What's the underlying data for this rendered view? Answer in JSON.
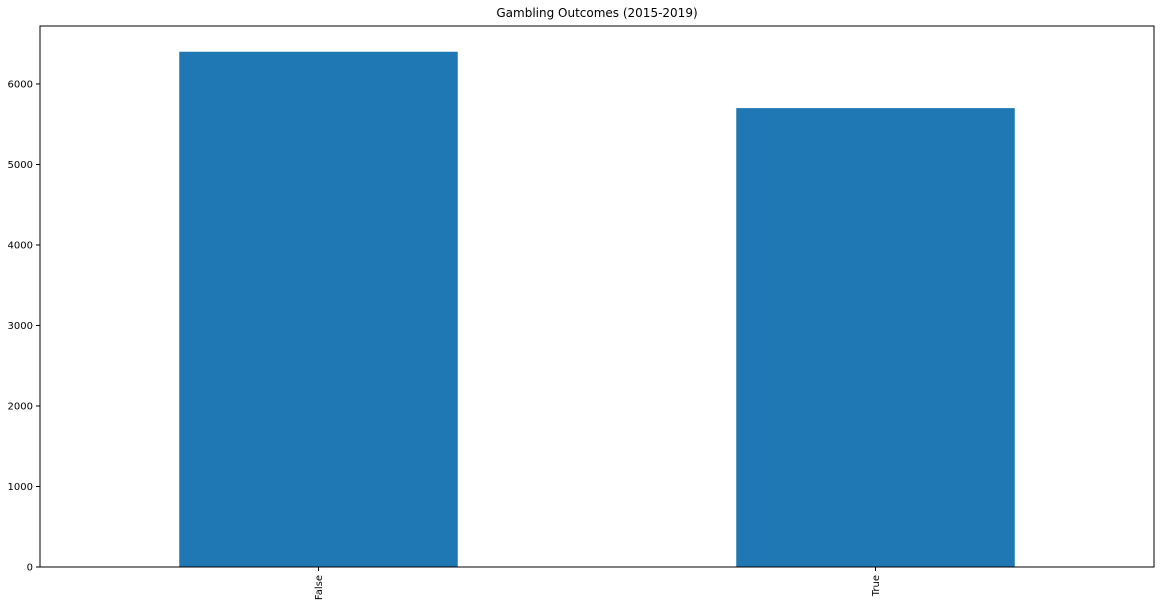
{
  "chart_data": {
    "type": "bar",
    "title": "Gambling Outcomes (2015-2019)",
    "xlabel": "",
    "ylabel": "",
    "categories": [
      "False",
      "True"
    ],
    "values": [
      6400,
      5700
    ],
    "ylim": [
      0,
      6720
    ],
    "yticks": [
      0,
      1000,
      2000,
      3000,
      4000,
      5000,
      6000
    ],
    "grid": false,
    "legend": "none",
    "colors": {
      "bar": "#1f77b4",
      "axis": "#000000",
      "background": "#ffffff"
    }
  }
}
